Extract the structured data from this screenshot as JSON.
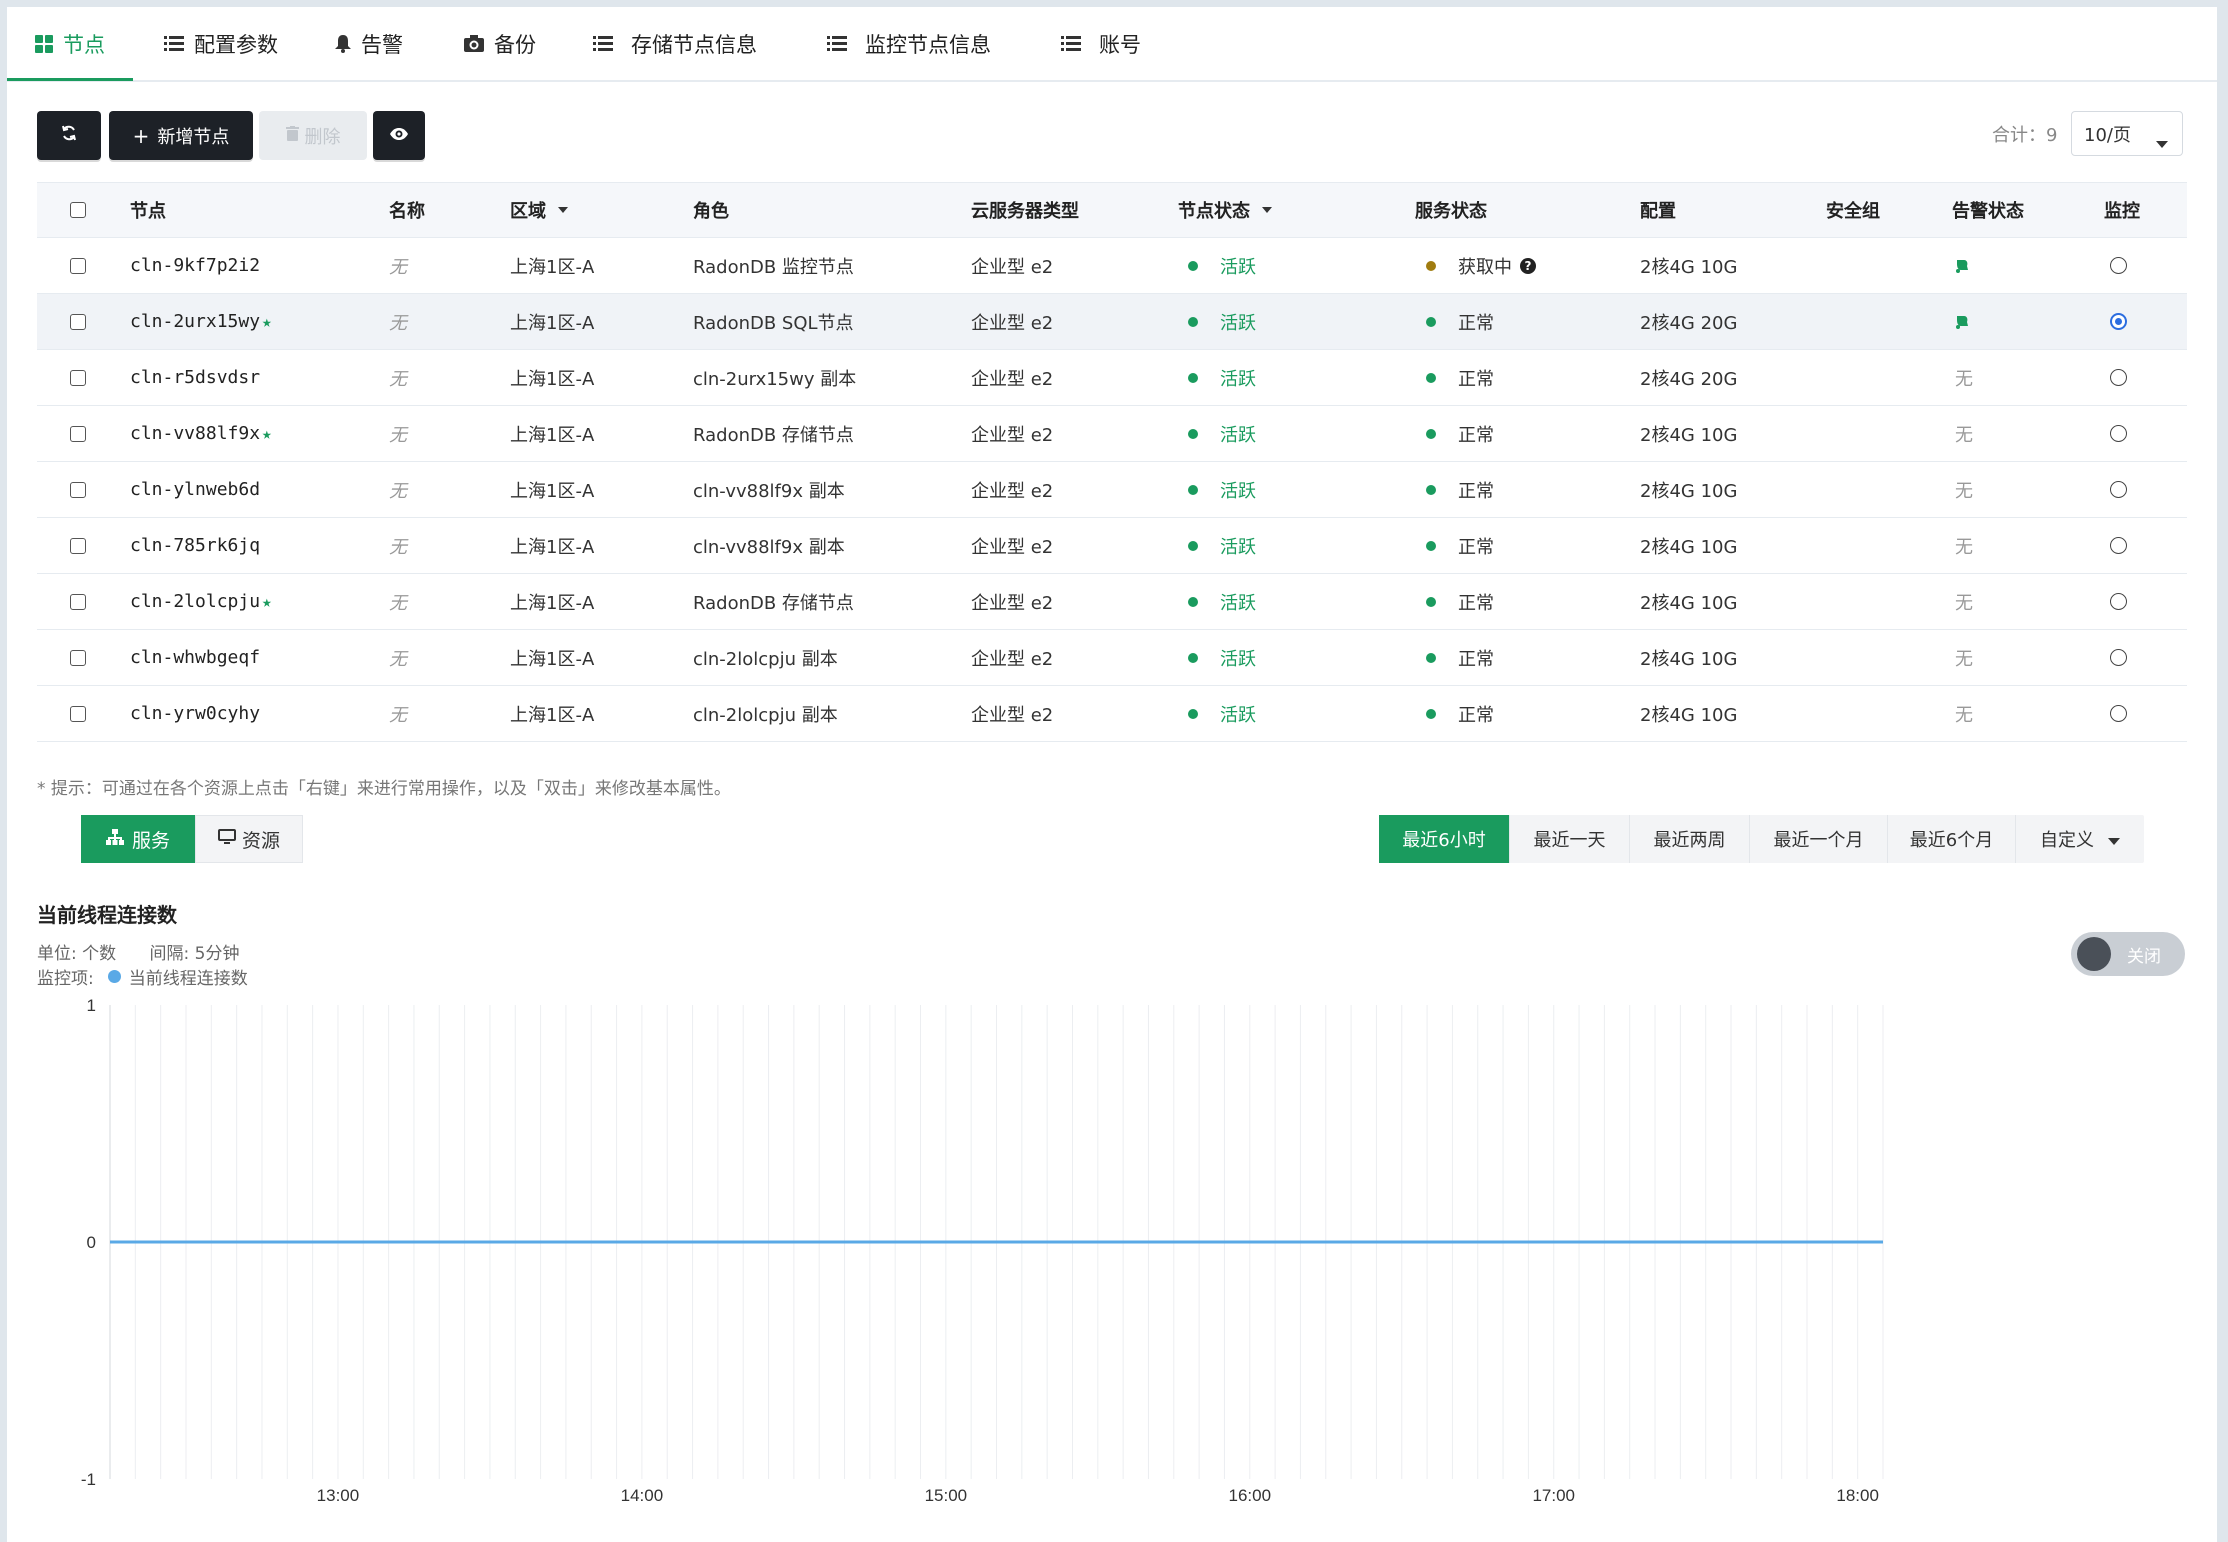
{
  "tabs": [
    {
      "label": "节点",
      "icon": "grid-icon",
      "active": true
    },
    {
      "label": "配置参数",
      "icon": "list-icon"
    },
    {
      "label": "告警",
      "icon": "bell-icon"
    },
    {
      "label": "备份",
      "icon": "camera-icon"
    },
    {
      "label": "存储节点信息",
      "icon": "list-icon"
    },
    {
      "label": "监控节点信息",
      "icon": "list-icon"
    },
    {
      "label": "账号",
      "icon": "list-icon"
    }
  ],
  "toolbar": {
    "add_label": "新增节点",
    "delete_label": "删除",
    "total_label": "合计：9",
    "page_size": "10/页"
  },
  "table": {
    "headers": {
      "node": "节点",
      "name": "名称",
      "zone": "区域",
      "role": "角色",
      "instance_type": "云服务器类型",
      "node_status": "节点状态",
      "service_status": "服务状态",
      "config": "配置",
      "security_group": "安全组",
      "alert_status": "告警状态",
      "monitor": "监控"
    },
    "rows": [
      {
        "id": "cln-9kf7p2i2",
        "star": false,
        "name": "无",
        "zone": "上海1区-A",
        "role": "RadonDB 监控节点",
        "type": "企业型 e2",
        "node_status": "活跃",
        "service_status": "获取中",
        "service_color": "#a07c10",
        "help": true,
        "config": "2核4G 10G",
        "alert": "icon",
        "monitor": false
      },
      {
        "id": "cln-2urx15wy",
        "star": true,
        "name": "无",
        "zone": "上海1区-A",
        "role": "RadonDB SQL节点",
        "type": "企业型 e2",
        "node_status": "活跃",
        "service_status": "正常",
        "service_color": "#1a9b5e",
        "help": false,
        "config": "2核4G 20G",
        "alert": "icon",
        "monitor": true
      },
      {
        "id": "cln-r5dsvdsr",
        "star": false,
        "name": "无",
        "zone": "上海1区-A",
        "role": "cln-2urx15wy 副本",
        "type": "企业型 e2",
        "node_status": "活跃",
        "service_status": "正常",
        "service_color": "#1a9b5e",
        "help": false,
        "config": "2核4G 20G",
        "alert": "无",
        "monitor": false
      },
      {
        "id": "cln-vv88lf9x",
        "star": true,
        "name": "无",
        "zone": "上海1区-A",
        "role": "RadonDB 存储节点",
        "type": "企业型 e2",
        "node_status": "活跃",
        "service_status": "正常",
        "service_color": "#1a9b5e",
        "help": false,
        "config": "2核4G 10G",
        "alert": "无",
        "monitor": false
      },
      {
        "id": "cln-ylnweb6d",
        "star": false,
        "name": "无",
        "zone": "上海1区-A",
        "role": "cln-vv88lf9x 副本",
        "type": "企业型 e2",
        "node_status": "活跃",
        "service_status": "正常",
        "service_color": "#1a9b5e",
        "help": false,
        "config": "2核4G 10G",
        "alert": "无",
        "monitor": false
      },
      {
        "id": "cln-785rk6jq",
        "star": false,
        "name": "无",
        "zone": "上海1区-A",
        "role": "cln-vv88lf9x 副本",
        "type": "企业型 e2",
        "node_status": "活跃",
        "service_status": "正常",
        "service_color": "#1a9b5e",
        "help": false,
        "config": "2核4G 10G",
        "alert": "无",
        "monitor": false
      },
      {
        "id": "cln-2lolcpju",
        "star": true,
        "name": "无",
        "zone": "上海1区-A",
        "role": "RadonDB 存储节点",
        "type": "企业型 e2",
        "node_status": "活跃",
        "service_status": "正常",
        "service_color": "#1a9b5e",
        "help": false,
        "config": "2核4G 10G",
        "alert": "无",
        "monitor": false
      },
      {
        "id": "cln-whwbgeqf",
        "star": false,
        "name": "无",
        "zone": "上海1区-A",
        "role": "cln-2lolcpju 副本",
        "type": "企业型 e2",
        "node_status": "活跃",
        "service_status": "正常",
        "service_color": "#1a9b5e",
        "help": false,
        "config": "2核4G 10G",
        "alert": "无",
        "monitor": false
      },
      {
        "id": "cln-yrw0cyhy",
        "star": false,
        "name": "无",
        "zone": "上海1区-A",
        "role": "cln-2lolcpju 副本",
        "type": "企业型 e2",
        "node_status": "活跃",
        "service_status": "正常",
        "service_color": "#1a9b5e",
        "help": false,
        "config": "2核4G 10G",
        "alert": "无",
        "monitor": false
      }
    ]
  },
  "hint": "* 提示：可通过在各个资源上点击「右键」来进行常用操作，以及「双击」来修改基本属性。",
  "view_toggle": {
    "service": "服务",
    "resource": "资源"
  },
  "time_ranges": [
    {
      "label": "最近6小时",
      "active": true
    },
    {
      "label": "最近一天"
    },
    {
      "label": "最近两周"
    },
    {
      "label": "最近一个月"
    },
    {
      "label": "最近6个月"
    },
    {
      "label": "自定义",
      "dropdown": true
    }
  ],
  "monitor": {
    "title": "当前线程连接数",
    "unit_label": "单位: 个数",
    "interval_label": "间隔: 5分钟",
    "item_label": "监控项:",
    "item_name": "当前线程连接数",
    "toggle_label": "关闭"
  },
  "colors": {
    "accent": "#1a9b5e",
    "series": "#5aa9e6"
  },
  "chart_data": {
    "type": "line",
    "title": "当前线程连接数",
    "x": [
      "12:15",
      "12:20",
      "12:25",
      "12:30",
      "12:35",
      "12:40",
      "12:45",
      "12:50",
      "12:55",
      "13:00",
      "13:05",
      "13:10",
      "13:15",
      "13:20",
      "13:25",
      "13:30",
      "13:35",
      "13:40",
      "13:45",
      "13:50",
      "13:55",
      "14:00",
      "14:05",
      "14:10",
      "14:15",
      "14:20",
      "14:25",
      "14:30",
      "14:35",
      "14:40",
      "14:45",
      "14:50",
      "14:55",
      "15:00",
      "15:05",
      "15:10",
      "15:15",
      "15:20",
      "15:25",
      "15:30",
      "15:35",
      "15:40",
      "15:45",
      "15:50",
      "15:55",
      "16:00",
      "16:05",
      "16:10",
      "16:15",
      "16:20",
      "16:25",
      "16:30",
      "16:35",
      "16:40",
      "16:45",
      "16:50",
      "16:55",
      "17:00",
      "17:05",
      "17:10",
      "17:15",
      "17:20",
      "17:25",
      "17:30",
      "17:35",
      "17:40",
      "17:45",
      "17:50",
      "17:55",
      "18:00",
      "18:05"
    ],
    "x_tick_labels": [
      "13:00",
      "14:00",
      "15:00",
      "16:00",
      "17:00",
      "18:00"
    ],
    "y_ticks": [
      1,
      0,
      -1
    ],
    "ylim": [
      -1,
      1
    ],
    "series": [
      {
        "name": "当前线程连接数",
        "constant": 0
      }
    ],
    "grid": true
  }
}
